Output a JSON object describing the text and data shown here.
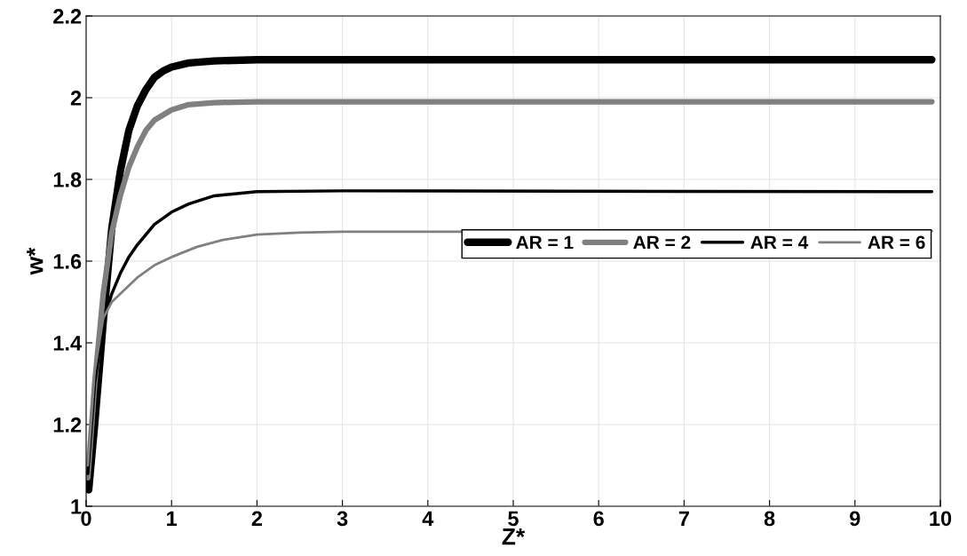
{
  "chart_data": {
    "type": "line",
    "xlabel": "Z*",
    "ylabel": "w*",
    "xlim": [
      0,
      10
    ],
    "ylim": [
      1,
      2.2
    ],
    "xticks": [
      0,
      1,
      2,
      3,
      4,
      5,
      6,
      7,
      8,
      9,
      10
    ],
    "yticks": [
      1,
      1.2,
      1.4,
      1.6,
      1.8,
      2,
      2.2
    ],
    "grid": true,
    "legend": "right",
    "marker": "none",
    "line_style": "solid",
    "series": [
      {
        "name": "AR = 1",
        "color": "#000000",
        "x": [
          0.03,
          0.1,
          0.2,
          0.3,
          0.4,
          0.5,
          0.6,
          0.7,
          0.8,
          0.9,
          1.0,
          1.2,
          1.5,
          2,
          9.9
        ],
        "values": [
          1.04,
          1.2,
          1.45,
          1.68,
          1.82,
          1.92,
          1.98,
          2.02,
          2.05,
          2.065,
          2.075,
          2.085,
          2.09,
          2.093,
          2.093
        ]
      },
      {
        "name": "AR = 2",
        "color": "#808080",
        "x": [
          0.02,
          0.1,
          0.2,
          0.3,
          0.4,
          0.5,
          0.6,
          0.7,
          0.8,
          1.0,
          1.2,
          1.5,
          2,
          9.9
        ],
        "values": [
          1.07,
          1.3,
          1.52,
          1.67,
          1.76,
          1.83,
          1.88,
          1.92,
          1.945,
          1.97,
          1.983,
          1.988,
          1.99,
          1.99
        ]
      },
      {
        "name": "AR = 4",
        "color": "#000000",
        "x": [
          0.02,
          0.1,
          0.2,
          0.3,
          0.4,
          0.5,
          0.6,
          0.8,
          1.0,
          1.2,
          1.5,
          2,
          3,
          9.9
        ],
        "values": [
          1.08,
          1.3,
          1.45,
          1.52,
          1.57,
          1.61,
          1.64,
          1.69,
          1.72,
          1.74,
          1.76,
          1.77,
          1.772,
          1.77
        ]
      },
      {
        "name": "AR = 6",
        "color": "#808080",
        "x": [
          0.02,
          0.1,
          0.2,
          0.3,
          0.4,
          0.6,
          0.8,
          1.0,
          1.3,
          1.6,
          2,
          2.5,
          3,
          9.9
        ],
        "values": [
          1.1,
          1.33,
          1.46,
          1.5,
          1.52,
          1.56,
          1.59,
          1.61,
          1.635,
          1.652,
          1.665,
          1.67,
          1.672,
          1.673
        ]
      }
    ]
  }
}
